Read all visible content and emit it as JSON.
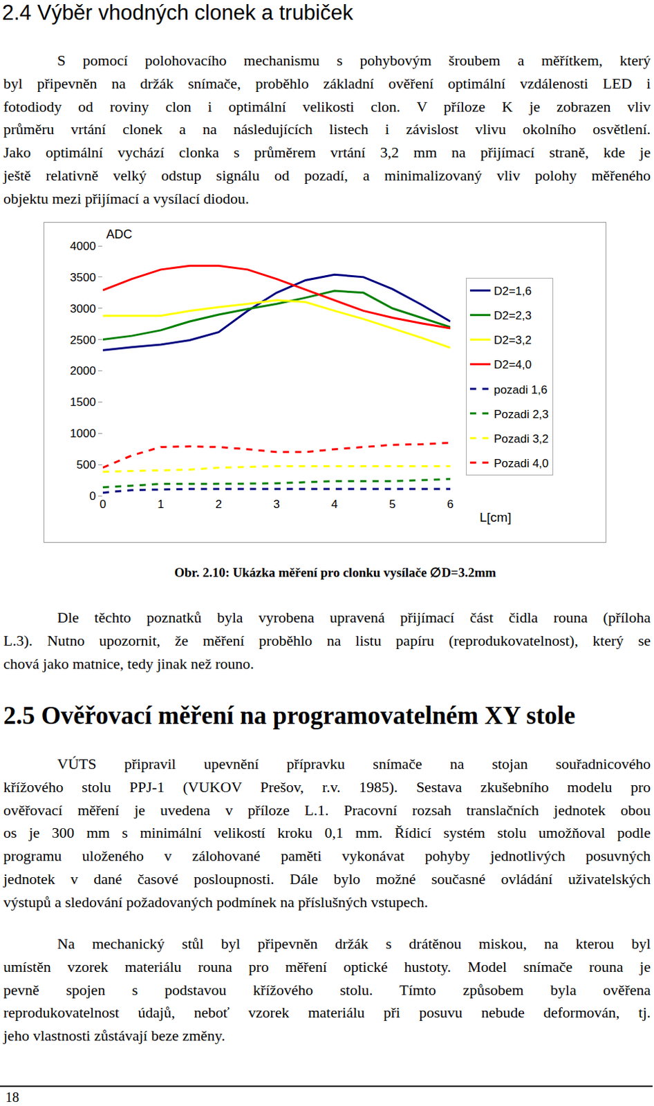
{
  "heading_1": "2.4 Výběr vhodných clonek a trubiček",
  "paragraph_1": [
    "S pomocí polohovacího mechanismu s pohybovým šroubem a měřítkem, který",
    "byl připevněn na držák snímače, proběhlo základní ověření optimální vzdálenosti LED i",
    "fotodiody od roviny clon i optimální velikosti clon. V příloze K je zobrazen vliv",
    "průměru vrtání clonek a na následujících listech i závislost vlivu okolního osvětlení.",
    "Jako optimální vychází clonka s průměrem vrtání 3,2 mm na přijímací straně, kde je",
    "ještě relativně velký odstup signálu od pozadí, a minimalizovaný vliv polohy měřeného",
    "objektu mezi přijímací a vysílací diodou."
  ],
  "chart_data": {
    "type": "line",
    "y_label": "ADC",
    "x_label": "L[cm]",
    "x": [
      0,
      0.5,
      1,
      1.5,
      2,
      2.5,
      3,
      3.5,
      4,
      4.5,
      5,
      5.5,
      6
    ],
    "xlim": [
      0,
      6
    ],
    "xticks": [
      0,
      1,
      2,
      3,
      4,
      5,
      6
    ],
    "ylim": [
      0,
      4000
    ],
    "yticks": [
      0,
      500,
      1000,
      1500,
      2000,
      2500,
      3000,
      3500,
      4000
    ],
    "grid": false,
    "legend": "right",
    "series": [
      {
        "name": "D2=1,6",
        "color": "#000080",
        "line_style": "solid",
        "values": [
          2330,
          2380,
          2420,
          2490,
          2620,
          2960,
          3250,
          3450,
          3540,
          3500,
          3310,
          3060,
          2790
        ]
      },
      {
        "name": "D2=2,3",
        "color": "#008000",
        "line_style": "solid",
        "values": [
          2500,
          2560,
          2650,
          2790,
          2900,
          2990,
          3070,
          3170,
          3280,
          3250,
          3000,
          2850,
          2700
        ]
      },
      {
        "name": "D2=3,2",
        "color": "#ffff00",
        "line_style": "solid",
        "values": [
          2880,
          2880,
          2880,
          2960,
          3020,
          3070,
          3130,
          3100,
          2960,
          2830,
          2680,
          2530,
          2370
        ]
      },
      {
        "name": "D2=4,0",
        "color": "#ff0000",
        "line_style": "solid",
        "values": [
          3290,
          3470,
          3620,
          3680,
          3680,
          3620,
          3470,
          3300,
          3130,
          2960,
          2850,
          2760,
          2680
        ]
      },
      {
        "name": "pozadi 1,6",
        "color": "#000080",
        "line_style": "dash",
        "values": [
          50,
          90,
          100,
          110,
          110,
          110,
          110,
          110,
          110,
          110,
          110,
          110,
          110
        ]
      },
      {
        "name": "Pozadi 2,3",
        "color": "#008000",
        "line_style": "dash",
        "values": [
          135,
          165,
          190,
          190,
          190,
          195,
          200,
          215,
          235,
          235,
          235,
          250,
          270
        ]
      },
      {
        "name": "Pozadi 3,2",
        "color": "#ffff00",
        "line_style": "dash",
        "values": [
          385,
          395,
          405,
          420,
          450,
          465,
          475,
          475,
          475,
          475,
          475,
          475,
          475
        ]
      },
      {
        "name": "Pozadi 4,0",
        "color": "#ff0000",
        "line_style": "dash",
        "values": [
          450,
          645,
          780,
          790,
          780,
          745,
          700,
          700,
          745,
          780,
          815,
          825,
          850
        ]
      }
    ]
  },
  "caption": "Obr. 2.10: Ukázka měření pro clonku vysílače ∅D=3.2mm",
  "paragraph_2": [
    "Dle těchto poznatků byla vyrobena upravená přijímací část čidla rouna (příloha",
    "L.3). Nutno upozornit, že měření proběhlo na listu papíru (reprodukovatelnost), který se",
    "chová jako matnice, tedy jinak než rouno."
  ],
  "heading_2": "2.5 Ověřovací měření na programovatelném XY stole",
  "paragraph_3": [
    "VÚTS připravil upevnění přípravku snímače na stojan souřadnicového",
    "křížového stolu PPJ-1 (VUKOV Prešov, r.v. 1985). Sestava zkušebního modelu pro",
    "ověřovací měření je uvedena v příloze L.1. Pracovní rozsah translačních jednotek obou",
    "os je 300 mm s minimální velikostí kroku 0,1 mm. Řídicí systém stolu umožňoval podle",
    "programu uloženého v zálohované paměti vykonávat pohyby jednotlivých posuvných",
    "jednotek v dané časové posloupnosti. Dále bylo možné současné ovládání uživatelských",
    "výstupů a sledování požadovaných podmínek na příslušných vstupech."
  ],
  "paragraph_4": [
    "Na mechanický stůl byl připevněn držák s drátěnou miskou, na kterou byl",
    "umístěn vzorek materiálu rouna pro měření optické hustoty. Model snímače rouna je",
    "pevně spojen s podstavou křížového stolu. Tímto způsobem byla ověřena",
    "reprodukovatelnost údajů, neboť vzorek materiálu při posuvu nebude deformován, tj.",
    "jeho vlastnosti zůstávají beze změny."
  ],
  "page_number": "18"
}
